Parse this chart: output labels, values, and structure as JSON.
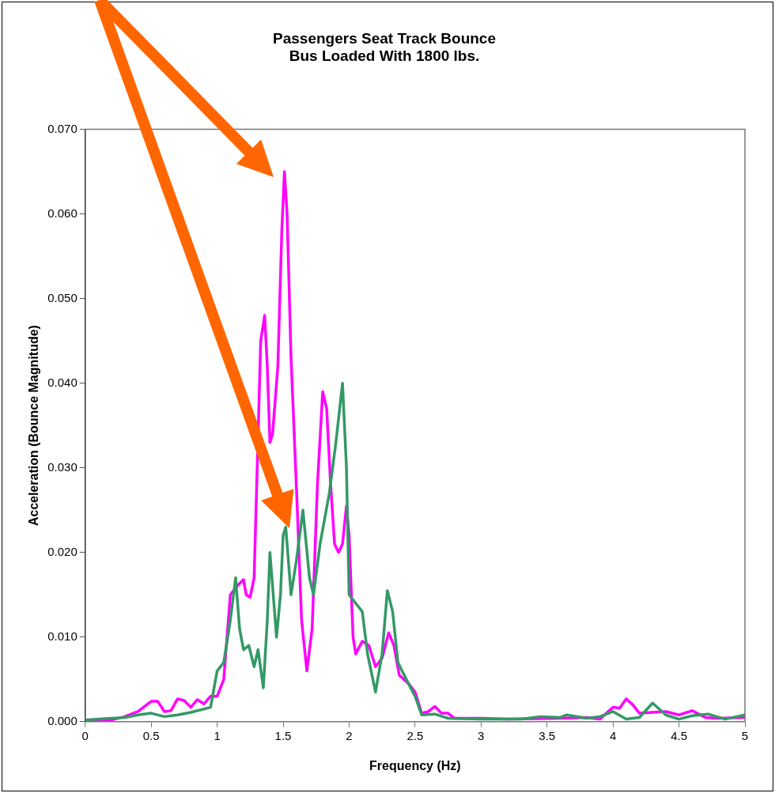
{
  "chart_data": {
    "type": "line",
    "title": "Passengers Seat Track Bounce\nBus Loaded With 1800 lbs.",
    "xlabel": "Frequency (Hz)",
    "ylabel": "Acceleration (Bounce Magnitude)",
    "xlim": [
      0,
      5
    ],
    "xticks": [
      0,
      0.5,
      1,
      1.5,
      2,
      2.5,
      3,
      3.5,
      4,
      4.5,
      5
    ],
    "ylim": [
      0,
      0.07
    ],
    "yticks": [
      {
        "value": 0,
        "label": "0.000"
      },
      {
        "value": 0.01,
        "label": "0.010"
      },
      {
        "value": 0.02,
        "label": "0.020"
      },
      {
        "value": 0.03,
        "label": "0.030"
      },
      {
        "value": 0.04,
        "label": "0.040"
      },
      {
        "value": 0.05,
        "label": "0.050"
      },
      {
        "value": 0.06,
        "label": "0.060"
      },
      {
        "value": 0.07,
        "label": "0.070"
      }
    ],
    "grid": false,
    "marker": "none",
    "line_style": "solid",
    "series": [
      {
        "color": "#339966",
        "x": [
          0,
          0.1,
          0.2,
          0.3,
          0.4,
          0.5,
          0.6,
          0.7,
          0.8,
          0.9,
          0.95,
          1.0,
          1.05,
          1.1,
          1.14,
          1.17,
          1.2,
          1.24,
          1.28,
          1.31,
          1.35,
          1.38,
          1.4,
          1.45,
          1.48,
          1.5,
          1.52,
          1.56,
          1.6,
          1.65,
          1.7,
          1.73,
          1.78,
          1.85,
          1.9,
          1.95,
          1.98,
          2.0,
          2.05,
          2.1,
          2.14,
          2.2,
          2.25,
          2.29,
          2.33,
          2.37,
          2.45,
          2.5,
          2.55,
          2.65,
          2.75,
          3.0,
          3.3,
          3.45,
          3.6,
          3.65,
          3.8,
          3.9,
          4.0,
          4.1,
          4.2,
          4.3,
          4.4,
          4.5,
          4.6,
          4.72,
          4.85,
          5.0
        ],
        "values": [
          0.0002,
          0.0003,
          0.0004,
          0.0005,
          0.0008,
          0.001,
          0.0006,
          0.0008,
          0.0011,
          0.0015,
          0.0017,
          0.006,
          0.007,
          0.012,
          0.017,
          0.011,
          0.0085,
          0.009,
          0.0065,
          0.0085,
          0.004,
          0.012,
          0.02,
          0.01,
          0.015,
          0.022,
          0.023,
          0.015,
          0.019,
          0.025,
          0.017,
          0.015,
          0.021,
          0.027,
          0.033,
          0.04,
          0.03,
          0.015,
          0.014,
          0.013,
          0.008,
          0.0035,
          0.008,
          0.0155,
          0.013,
          0.007,
          0.0045,
          0.003,
          0.0008,
          0.0009,
          0.0004,
          0.0003,
          0.0003,
          0.0006,
          0.0005,
          0.0008,
          0.0004,
          0.0006,
          0.0012,
          0.0003,
          0.0005,
          0.0022,
          0.0008,
          0.0003,
          0.0007,
          0.0009,
          0.0003,
          0.0008
        ]
      },
      {
        "color": "#ff00ff",
        "x": [
          0,
          0.2,
          0.3,
          0.4,
          0.5,
          0.55,
          0.6,
          0.65,
          0.7,
          0.75,
          0.8,
          0.85,
          0.9,
          0.95,
          1.0,
          1.05,
          1.1,
          1.15,
          1.2,
          1.22,
          1.25,
          1.28,
          1.3,
          1.33,
          1.36,
          1.38,
          1.4,
          1.42,
          1.46,
          1.49,
          1.51,
          1.53,
          1.56,
          1.6,
          1.64,
          1.68,
          1.72,
          1.76,
          1.8,
          1.83,
          1.86,
          1.89,
          1.92,
          1.95,
          1.98,
          2.0,
          2.03,
          2.05,
          2.1,
          2.15,
          2.2,
          2.25,
          2.3,
          2.34,
          2.38,
          2.45,
          2.5,
          2.55,
          2.6,
          2.65,
          2.7,
          2.75,
          2.8,
          3.0,
          3.2,
          3.6,
          3.8,
          3.9,
          4.0,
          4.05,
          4.1,
          4.15,
          4.2,
          4.4,
          4.5,
          4.6,
          4.7,
          4.8,
          5.0
        ],
        "values": [
          0.0002,
          0.0002,
          0.0006,
          0.0012,
          0.0024,
          0.0024,
          0.0012,
          0.0013,
          0.0027,
          0.0025,
          0.0017,
          0.0026,
          0.0021,
          0.003,
          0.003,
          0.005,
          0.015,
          0.016,
          0.0168,
          0.015,
          0.0147,
          0.017,
          0.028,
          0.045,
          0.048,
          0.042,
          0.033,
          0.034,
          0.042,
          0.058,
          0.065,
          0.06,
          0.043,
          0.028,
          0.012,
          0.006,
          0.011,
          0.028,
          0.039,
          0.037,
          0.028,
          0.021,
          0.02,
          0.021,
          0.0255,
          0.022,
          0.01,
          0.008,
          0.0095,
          0.009,
          0.0065,
          0.0075,
          0.0105,
          0.009,
          0.0055,
          0.0045,
          0.0035,
          0.001,
          0.0012,
          0.0018,
          0.001,
          0.001,
          0.0004,
          0.0004,
          0.0003,
          0.0004,
          0.0005,
          0.0003,
          0.0017,
          0.0016,
          0.0027,
          0.002,
          0.001,
          0.0012,
          0.0008,
          0.0013,
          0.0005,
          0.0004,
          0.0005
        ]
      }
    ]
  }
}
